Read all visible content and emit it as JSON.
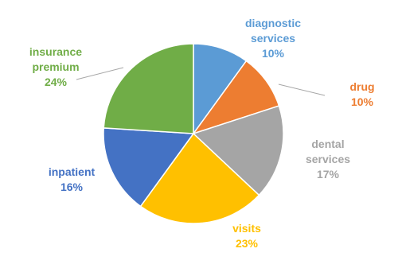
{
  "chart_data": {
    "type": "pie",
    "categories": [
      "diagnostic services",
      "drug",
      "dental services",
      "visits",
      "inpatient",
      "insurance premium"
    ],
    "values": [
      10,
      10,
      17,
      23,
      16,
      24
    ],
    "value_labels": [
      "10%",
      "10%",
      "17%",
      "23%",
      "16%",
      "24%"
    ],
    "colors": [
      "#5b9bd5",
      "#ed7d31",
      "#a5a5a5",
      "#ffc000",
      "#4472c4",
      "#70ad47"
    ]
  }
}
